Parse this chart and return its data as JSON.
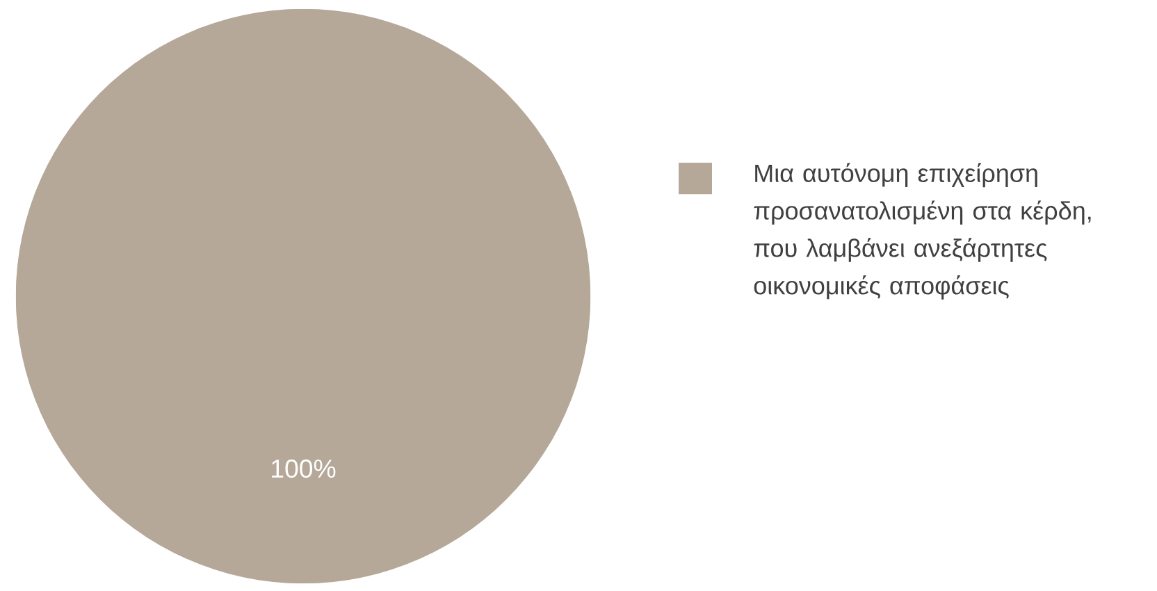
{
  "chart_data": {
    "type": "pie",
    "categories": [
      "Μια αυτόνομη επιχείρηση προσανατολισμένη στα κέρδη, που λαμβάνει ανεξάρτητες οικονομικές αποφάσεις"
    ],
    "values": [
      100
    ],
    "colors": [
      "#b5a899"
    ],
    "value_labels": [
      "100%"
    ],
    "legend": "right"
  }
}
